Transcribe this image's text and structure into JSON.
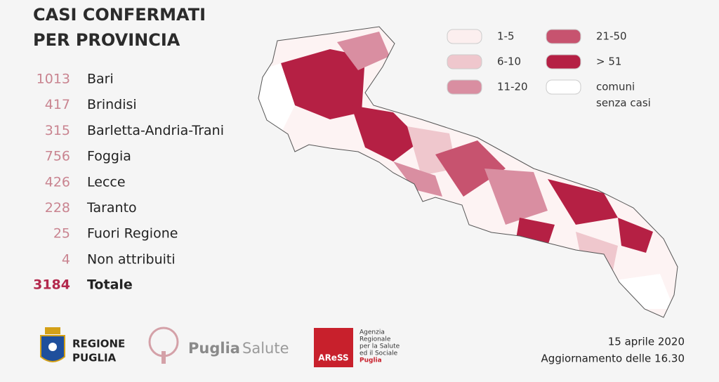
{
  "title": [
    "CASI CONFERMATI",
    "PER PROVINCIA"
  ],
  "table": {
    "rows": [
      [
        1013,
        "Bari"
      ],
      [
        417,
        "Brindisi"
      ],
      [
        315,
        "Barletta-Andria-Trani"
      ],
      [
        756,
        "Foggia"
      ],
      [
        426,
        "Lecce"
      ],
      [
        228,
        "Taranto"
      ],
      [
        25,
        "Fuori Regione"
      ],
      [
        4,
        "Non attribuiti"
      ]
    ],
    "total": [
      3184,
      "Totale"
    ]
  },
  "legend": [
    {
      "label": [
        "1-5"
      ],
      "color": "#fcefef"
    },
    {
      "label": [
        "6-10"
      ],
      "color": "#efc7cd"
    },
    {
      "label": [
        "11-20"
      ],
      "color": "#d98ea1"
    },
    {
      "label": [
        "21-50"
      ],
      "color": "#c7536f"
    },
    {
      "label": [
        "> 51"
      ],
      "color": "#b52044"
    },
    {
      "label": [
        "comuni",
        "senza casi"
      ],
      "color": "#ffffff"
    }
  ],
  "logos": {
    "regione": [
      "REGIONE",
      "PUGLIA"
    ],
    "puglia_salute": [
      "Puglia",
      "Salute"
    ],
    "aress": {
      "mark": "AReSS",
      "text": [
        "Agenzia",
        "Regionale",
        "per la Salute",
        "ed il Sociale",
        "Puglia"
      ]
    }
  },
  "footer": {
    "date": "15 aprile 2020",
    "update": "Aggiornamento delle 16.30"
  }
}
